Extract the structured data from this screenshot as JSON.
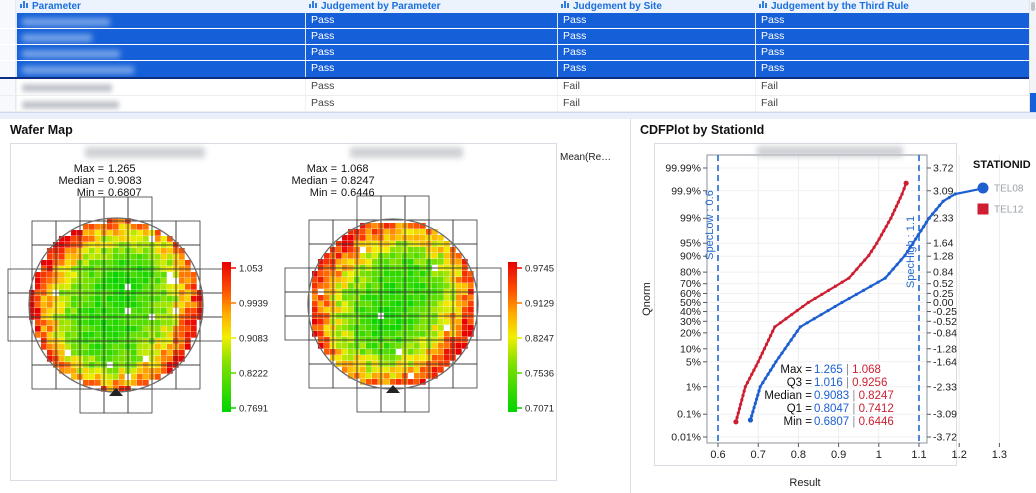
{
  "table": {
    "columns": [
      "Parameter",
      "Judgement by Parameter",
      "Judgement by Site",
      "Judgement by the Third Rule"
    ],
    "rows": [
      {
        "parameter_redacted": true,
        "judgement_by_parameter": "Pass",
        "judgement_by_site": "Pass",
        "judgement_by_third_rule": "Pass",
        "selected": true
      },
      {
        "parameter_redacted": true,
        "judgement_by_parameter": "Pass",
        "judgement_by_site": "Pass",
        "judgement_by_third_rule": "Pass",
        "selected": true
      },
      {
        "parameter_redacted": true,
        "judgement_by_parameter": "Pass",
        "judgement_by_site": "Pass",
        "judgement_by_third_rule": "Pass",
        "selected": true
      },
      {
        "parameter_redacted": true,
        "judgement_by_parameter": "Pass",
        "judgement_by_site": "Pass",
        "judgement_by_third_rule": "Pass",
        "selected": true
      },
      {
        "parameter_redacted": true,
        "judgement_by_parameter": "Pass",
        "judgement_by_site": "Fail",
        "judgement_by_third_rule": "Fail",
        "selected": false
      },
      {
        "parameter_redacted": true,
        "judgement_by_parameter": "Pass",
        "judgement_by_site": "Fail",
        "judgement_by_third_rule": "Fail",
        "selected": false
      }
    ],
    "selection_color": "#1560d8",
    "header_text_color": "#1a6fe0"
  },
  "wafer_panel": {
    "title": "Wafer Map",
    "legend_header": "Mean(Re…",
    "wafers": [
      {
        "stat_labels": [
          "Max =",
          "Median =",
          "Min ="
        ],
        "stat_values": [
          "1.265",
          "0.9083",
          "0.6807"
        ],
        "colorbar_ticks": [
          "1.053",
          "0.9939",
          "0.9083",
          "0.8222",
          "0.7691"
        ]
      },
      {
        "stat_labels": [
          "Max =",
          "Median =",
          "Min ="
        ],
        "stat_values": [
          "1.068",
          "0.8247",
          "0.6446"
        ],
        "colorbar_ticks": [
          "0.9745",
          "0.9129",
          "0.8247",
          "0.7536",
          "0.7071"
        ]
      }
    ],
    "colormap": [
      "#00d400",
      "#7fe000",
      "#f2ee00",
      "#ffae00",
      "#ff5500",
      "#e80000"
    ]
  },
  "cdf_panel": {
    "title": "CDFPlot by StationId",
    "xlabel": "Result",
    "ylabel": "Qnorm",
    "legend": {
      "title": "STATIONID",
      "entries": [
        {
          "label": "TEL08",
          "color": "#1d5fd0",
          "marker": "circle"
        },
        {
          "label": "TEL12",
          "color": "#cd1f31",
          "marker": "square"
        }
      ]
    },
    "spec_low_label": "SpecLow : 0.6",
    "spec_high_label": "SpecHigh : 1.1",
    "spec_color": "#2268d0",
    "x_ticks": [
      "0.6",
      "0.7",
      "0.8",
      "0.9",
      "1",
      "1.1",
      "1.2",
      "1.3"
    ],
    "y_ticks": [
      {
        "pct": "99.99%",
        "q": 3.72,
        "qlabel": "3.72"
      },
      {
        "pct": "99.9%",
        "q": 3.09,
        "qlabel": "3.09"
      },
      {
        "pct": "99%",
        "q": 2.33,
        "qlabel": "2.33"
      },
      {
        "pct": "95%",
        "q": 1.64,
        "qlabel": "1.64"
      },
      {
        "pct": "90%",
        "q": 1.28,
        "qlabel": "1.28"
      },
      {
        "pct": "80%",
        "q": 0.84,
        "qlabel": "0.84"
      },
      {
        "pct": "70%",
        "q": 0.52,
        "qlabel": "0.52"
      },
      {
        "pct": "60%",
        "q": 0.25,
        "qlabel": "0.25"
      },
      {
        "pct": "50%",
        "q": 0.0,
        "qlabel": "0.00"
      },
      {
        "pct": "40%",
        "q": -0.25,
        "qlabel": "-0.25"
      },
      {
        "pct": "30%",
        "q": -0.52,
        "qlabel": "-0.52"
      },
      {
        "pct": "20%",
        "q": -0.84,
        "qlabel": "-0.84"
      },
      {
        "pct": "10%",
        "q": -1.28,
        "qlabel": "-1.28"
      },
      {
        "pct": "5%",
        "q": -1.64,
        "qlabel": "-1.64"
      },
      {
        "pct": "1%",
        "q": -2.33,
        "qlabel": "-2.33"
      },
      {
        "pct": "0.1%",
        "q": -3.09,
        "qlabel": "-3.09"
      },
      {
        "pct": "0.01%",
        "q": -3.72,
        "qlabel": "-3.72"
      }
    ],
    "stats_lines": [
      {
        "label": "Max = ",
        "v1": "1.265",
        "v2": "1.068"
      },
      {
        "label": "Q3 = ",
        "v1": "1.016",
        "v2": "0.9256"
      },
      {
        "label": "Median = ",
        "v1": "0.9083",
        "v2": "0.8247"
      },
      {
        "label": "Q1 = ",
        "v1": "0.8047",
        "v2": "0.7412"
      },
      {
        "label": "Min = ",
        "v1": "0.6807",
        "v2": "0.6446"
      }
    ]
  },
  "chart_data": [
    {
      "type": "heatmap",
      "name": "wafer-map-1",
      "title_redacted": true,
      "stats": {
        "max": 1.265,
        "median": 0.9083,
        "min": 0.6807
      },
      "colorbar_ticks": [
        1.053,
        0.9939,
        0.9083,
        0.8222,
        0.7691
      ],
      "pattern": "radial wafer die map: green low values at center, orange/red high ring at edge, notch at bottom"
    },
    {
      "type": "heatmap",
      "name": "wafer-map-2",
      "title_redacted": true,
      "stats": {
        "max": 1.068,
        "median": 0.8247,
        "min": 0.6446
      },
      "colorbar_ticks": [
        0.9745,
        0.9129,
        0.8247,
        0.7536,
        0.7071
      ],
      "pattern": "radial wafer die map: green center, thicker red edge ring, notch at bottom"
    },
    {
      "type": "line",
      "name": "cdf-plot",
      "title": "CDFPlot by StationId",
      "xlabel": "Result",
      "ylabel": "Qnorm",
      "xlim": [
        0.56,
        1.34
      ],
      "qlim": [
        -4.0,
        4.08
      ],
      "x_ticks": [
        0.6,
        0.7,
        0.8,
        0.9,
        1,
        1.1,
        1.2,
        1.3
      ],
      "spec_low": 0.6,
      "spec_high": 1.1,
      "grid": true,
      "legend_position": "right",
      "series": [
        {
          "name": "TEL08",
          "color": "#1d5fd0",
          "quantiles": {
            "min": 0.6807,
            "q1": 0.8047,
            "median": 0.9083,
            "q3": 1.016,
            "max": 1.265
          },
          "curve_qv": [
            [
              -3.25,
              0.6807
            ],
            [
              -2.33,
              0.705
            ],
            [
              -1.64,
              0.744
            ],
            [
              -0.674,
              0.8047
            ],
            [
              0,
              0.9083
            ],
            [
              0.674,
              1.016
            ],
            [
              1.3,
              1.065
            ],
            [
              1.64,
              1.085
            ],
            [
              2.33,
              1.125
            ],
            [
              2.8,
              1.16
            ],
            [
              3.0,
              1.19
            ],
            [
              3.17,
              1.265
            ]
          ]
        },
        {
          "name": "TEL12",
          "color": "#cd1f31",
          "quantiles": {
            "min": 0.6446,
            "q1": 0.7412,
            "median": 0.8247,
            "q3": 0.9256,
            "max": 1.068
          },
          "curve_qv": [
            [
              -3.3,
              0.6446
            ],
            [
              -2.33,
              0.668
            ],
            [
              -1.64,
              0.7
            ],
            [
              -0.674,
              0.7412
            ],
            [
              0,
              0.8247
            ],
            [
              0.674,
              0.9256
            ],
            [
              1.3,
              0.975
            ],
            [
              1.64,
              0.995
            ],
            [
              2.33,
              1.03
            ],
            [
              3.0,
              1.058
            ],
            [
              3.3,
              1.068
            ]
          ]
        }
      ]
    }
  ]
}
